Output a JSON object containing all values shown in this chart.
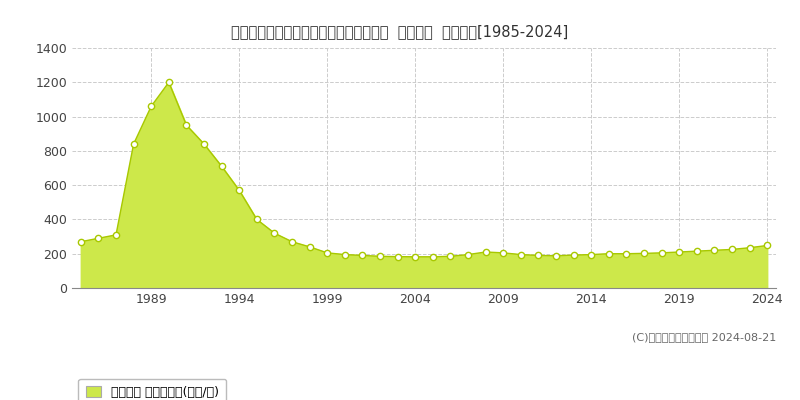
{
  "title": "埼玉県新座市東北２丁目３６番１０９外  地価公示  地価推移[1985-2024]",
  "years": [
    1985,
    1986,
    1987,
    1988,
    1989,
    1990,
    1991,
    1992,
    1993,
    1994,
    1995,
    1996,
    1997,
    1998,
    1999,
    2000,
    2001,
    2002,
    2003,
    2004,
    2005,
    2006,
    2007,
    2008,
    2009,
    2010,
    2011,
    2012,
    2013,
    2014,
    2015,
    2016,
    2017,
    2018,
    2019,
    2020,
    2021,
    2022,
    2023,
    2024
  ],
  "values": [
    270,
    290,
    310,
    840,
    1060,
    1200,
    950,
    840,
    710,
    570,
    400,
    320,
    270,
    240,
    205,
    195,
    190,
    185,
    183,
    182,
    182,
    185,
    195,
    210,
    205,
    195,
    190,
    188,
    192,
    195,
    200,
    200,
    202,
    205,
    210,
    215,
    220,
    225,
    235,
    248
  ],
  "fill_color": "#cde84a",
  "line_color": "#a8c800",
  "marker_color": "#ffffff",
  "marker_edge_color": "#a8c800",
  "ylim": [
    0,
    1400
  ],
  "yticks": [
    0,
    200,
    400,
    600,
    800,
    1000,
    1200,
    1400
  ],
  "xticks": [
    1989,
    1994,
    1999,
    2004,
    2009,
    2014,
    2019,
    2024
  ],
  "bg_color": "#ffffff",
  "plot_bg_color": "#ffffff",
  "grid_color": "#cccccc",
  "copyright_text": "(C)土地価格ドットコム 2024-08-21",
  "legend_label": "地価公示 平均坪単価(万円/坪)",
  "legend_color": "#cde84a"
}
